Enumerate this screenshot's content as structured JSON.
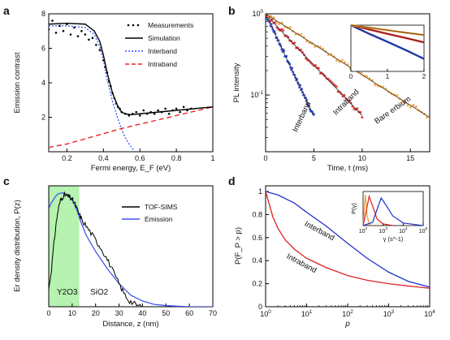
{
  "chart_data": [
    {
      "panel": "a",
      "type": "line",
      "xlabel": "Fermi energy, E_F (eV)",
      "ylabel": "Emission contrast",
      "xlim": [
        0.1,
        1.0
      ],
      "ylim": [
        0,
        8
      ],
      "xticks": [
        0.2,
        0.4,
        0.6,
        0.8,
        1
      ],
      "xtick_labels": [
        "0.2",
        "0.4",
        "0.6",
        "0.8",
        "1"
      ],
      "yticks": [
        2,
        4,
        6,
        8
      ],
      "ytick_labels": [
        "2",
        "4",
        "6",
        "8"
      ],
      "legend": [
        {
          "label": "Measurements",
          "style": "points",
          "color": "#000000"
        },
        {
          "label": "Simulation",
          "style": "solid",
          "color": "#000000"
        },
        {
          "label": "Interband",
          "style": "dotted",
          "color": "#3355ff"
        },
        {
          "label": "Intraband",
          "style": "dashed",
          "color": "#ee2222"
        }
      ],
      "legend_placement": "top-right",
      "series": [
        {
          "name": "Simulation",
          "x": [
            0.1,
            0.2,
            0.3,
            0.35,
            0.38,
            0.4,
            0.42,
            0.45,
            0.48,
            0.5,
            0.52,
            0.55,
            0.6,
            0.7,
            0.8,
            0.9,
            1.0
          ],
          "y": [
            7.4,
            7.45,
            7.4,
            7.0,
            6.4,
            5.6,
            4.6,
            3.4,
            2.6,
            2.3,
            2.2,
            2.15,
            2.2,
            2.3,
            2.4,
            2.5,
            2.6
          ]
        },
        {
          "name": "Interband",
          "x": [
            0.1,
            0.2,
            0.3,
            0.35,
            0.38,
            0.4,
            0.42,
            0.45,
            0.48,
            0.5,
            0.52,
            0.55,
            0.57
          ],
          "y": [
            7.3,
            7.3,
            7.2,
            6.8,
            6.1,
            5.3,
            4.2,
            2.9,
            1.9,
            1.3,
            0.8,
            0.3,
            0.05
          ]
        },
        {
          "name": "Intraband",
          "x": [
            0.1,
            0.2,
            0.3,
            0.4,
            0.5,
            0.6,
            0.7,
            0.8,
            0.9,
            1.0
          ],
          "y": [
            0.25,
            0.45,
            0.75,
            1.05,
            1.35,
            1.6,
            1.85,
            2.1,
            2.35,
            2.6
          ]
        },
        {
          "name": "Measurements",
          "x": [
            0.1,
            0.12,
            0.14,
            0.16,
            0.18,
            0.2,
            0.22,
            0.24,
            0.26,
            0.28,
            0.3,
            0.32,
            0.34,
            0.36,
            0.38,
            0.4,
            0.41,
            0.42,
            0.43,
            0.44,
            0.45,
            0.46,
            0.47,
            0.48,
            0.49,
            0.5,
            0.52,
            0.54,
            0.56,
            0.58,
            0.6,
            0.62,
            0.64,
            0.66,
            0.68,
            0.7,
            0.72,
            0.74,
            0.76,
            0.78,
            0.8,
            0.82,
            0.84,
            0.86,
            0.88
          ],
          "y": [
            7.1,
            7.6,
            6.9,
            7.3,
            7.0,
            7.4,
            6.8,
            7.2,
            6.7,
            7.0,
            6.8,
            6.5,
            6.6,
            6.2,
            5.9,
            5.3,
            4.9,
            4.6,
            4.1,
            3.8,
            3.4,
            3.1,
            2.8,
            2.6,
            2.5,
            2.3,
            2.2,
            2.1,
            2.2,
            2.3,
            2.1,
            2.4,
            2.2,
            2.3,
            2.2,
            2.4,
            2.3,
            2.5,
            2.2,
            2.4,
            2.5,
            2.3,
            2.6,
            2.4,
            2.5
          ]
        }
      ]
    },
    {
      "panel": "b",
      "type": "line",
      "xlabel": "Time, t (ms)",
      "ylabel": "PL intensity",
      "xlim": [
        0,
        17
      ],
      "ylim": [
        0.02,
        1
      ],
      "yscale": "log",
      "xticks": [
        0,
        5,
        10,
        15
      ],
      "xtick_labels": [
        "0",
        "5",
        "10",
        "15"
      ],
      "yticks": [
        0.1,
        1
      ],
      "ytick_labels": [
        "10^-1",
        "10^0"
      ],
      "annotations": [
        {
          "text": "Interband",
          "color": "#1f3fd6"
        },
        {
          "text": "Intraband",
          "color": "#e02020"
        },
        {
          "text": "Bare erbium",
          "color": "#f29a2e"
        }
      ],
      "series": [
        {
          "name": "Interband",
          "x": [
            0,
            1,
            2,
            3,
            4,
            5
          ],
          "y": [
            1.0,
            0.56,
            0.31,
            0.175,
            0.098,
            0.055
          ]
        },
        {
          "name": "Intraband",
          "x": [
            0,
            2,
            4,
            6,
            8,
            10
          ],
          "y": [
            1.0,
            0.55,
            0.31,
            0.175,
            0.1,
            0.056
          ]
        },
        {
          "name": "Bare erbium",
          "x": [
            0,
            4,
            8,
            12,
            16,
            17
          ],
          "y": [
            1.0,
            0.5,
            0.25,
            0.125,
            0.063,
            0.053
          ]
        }
      ],
      "inset": {
        "xlim": [
          0,
          2
        ],
        "xticks": [
          0,
          1,
          2
        ],
        "xtick_labels": [
          "0",
          "1",
          "2"
        ],
        "yscale": "log",
        "series": [
          {
            "name": "Interband",
            "x": [
              0,
              0.5,
              1,
              1.5,
              2
            ],
            "y": [
              1.0,
              0.74,
              0.56,
              0.42,
              0.31
            ]
          },
          {
            "name": "Intraband",
            "x": [
              0,
              0.5,
              1,
              1.5,
              2
            ],
            "y": [
              1.0,
              0.86,
              0.74,
              0.64,
              0.55
            ]
          },
          {
            "name": "Bare erbium",
            "x": [
              0,
              0.5,
              1,
              1.5,
              2
            ],
            "y": [
              1.0,
              0.92,
              0.84,
              0.77,
              0.71
            ]
          }
        ]
      }
    },
    {
      "panel": "c",
      "type": "line",
      "xlabel": "Distance, z (nm)",
      "ylabel": "Er density distribution, P(z)",
      "xlim": [
        0,
        70
      ],
      "ylim": [
        0,
        1
      ],
      "xticks": [
        0,
        10,
        20,
        30,
        40,
        50,
        60,
        70
      ],
      "xtick_labels": [
        "0",
        "10",
        "20",
        "30",
        "40",
        "50",
        "60",
        "70"
      ],
      "shaded_region": {
        "x": [
          0,
          13
        ],
        "color": "#b6f2b0",
        "label": "Y2O3"
      },
      "region_labels": [
        "Y2O3",
        "SiO2"
      ],
      "legend": [
        {
          "label": "TOF-SIMS",
          "color": "#000000"
        },
        {
          "label": "Emission",
          "color": "#4455ee"
        }
      ],
      "legend_placement": "top-right",
      "series": [
        {
          "name": "TOF-SIMS",
          "x": [
            0,
            1,
            2,
            3,
            4,
            5,
            6,
            7,
            8,
            9,
            10,
            11,
            12,
            13,
            14,
            16,
            18,
            20,
            22,
            24,
            26,
            28,
            30,
            32,
            34,
            36,
            38,
            40
          ],
          "y": [
            0.15,
            0.3,
            0.5,
            0.7,
            0.84,
            0.92,
            0.96,
            0.97,
            0.96,
            0.95,
            0.93,
            0.9,
            0.85,
            0.8,
            0.76,
            0.7,
            0.64,
            0.58,
            0.52,
            0.45,
            0.37,
            0.28,
            0.2,
            0.12,
            0.06,
            0.03,
            0.01,
            0.0
          ]
        },
        {
          "name": "Emission",
          "x": [
            0,
            1,
            2,
            3,
            4,
            6,
            8,
            10,
            12,
            14,
            16,
            18,
            20,
            22,
            25,
            30,
            35,
            40,
            45,
            50,
            55,
            60,
            65,
            70
          ],
          "y": [
            0.85,
            0.9,
            0.93,
            0.96,
            0.98,
            0.99,
            0.97,
            0.93,
            0.84,
            0.72,
            0.62,
            0.55,
            0.48,
            0.42,
            0.33,
            0.2,
            0.1,
            0.05,
            0.02,
            0.01,
            0.005,
            0.0,
            0.0,
            0.0
          ]
        }
      ]
    },
    {
      "panel": "d",
      "type": "line",
      "xlabel": "p",
      "ylabel": "P(F_P > p)",
      "xscale": "log",
      "xlim": [
        1,
        10000
      ],
      "ylim": [
        0,
        1
      ],
      "xticks": [
        1,
        10,
        100,
        1000,
        10000
      ],
      "xtick_labels": [
        "10^0",
        "10^1",
        "10^2",
        "10^3",
        "10^4"
      ],
      "yticks": [
        0,
        0.2,
        0.4,
        0.6,
        0.8,
        1
      ],
      "ytick_labels": [
        "0",
        "0.2",
        "0.4",
        "0.6",
        "0.8",
        "1"
      ],
      "annotations": [
        {
          "text": "Interband",
          "color": "#2233cc"
        },
        {
          "text": "Intraband",
          "color": "#dd2222"
        }
      ],
      "series": [
        {
          "name": "Interband",
          "x": [
            1,
            2,
            5,
            10,
            30,
            100,
            300,
            1000,
            3000,
            10000
          ],
          "y": [
            1.0,
            0.97,
            0.9,
            0.82,
            0.7,
            0.55,
            0.42,
            0.3,
            0.22,
            0.17
          ]
        },
        {
          "name": "Intraband",
          "x": [
            1,
            1.5,
            2,
            3,
            5,
            10,
            30,
            100,
            300,
            1000,
            3000,
            10000
          ],
          "y": [
            1.0,
            0.78,
            0.68,
            0.58,
            0.5,
            0.42,
            0.34,
            0.27,
            0.23,
            0.2,
            0.18,
            0.16
          ]
        }
      ],
      "inset": {
        "xlabel": "γ (s^-1)",
        "ylabel": "P(γ)",
        "xscale": "log",
        "xticks": [
          100,
          1000,
          10000,
          100000
        ],
        "xtick_labels": [
          "10^2",
          "10^3",
          "10^4",
          "10^5"
        ],
        "series": [
          {
            "name": "Bare erbium",
            "color": "#f29a2e",
            "x": [
              100,
              130,
              160,
              200,
              250
            ],
            "y": [
              0.0,
              0.95,
              0.3,
              0.05,
              0.0
            ]
          },
          {
            "name": "Intraband",
            "color": "#dd2222",
            "x": [
              100,
              150,
              200,
              300,
              500,
              1000,
              3000
            ],
            "y": [
              0.0,
              0.5,
              0.9,
              0.6,
              0.2,
              0.05,
              0.0
            ]
          },
          {
            "name": "Interband",
            "color": "#2233cc",
            "x": [
              100,
              300,
              500,
              800,
              1500,
              3000,
              10000,
              100000
            ],
            "y": [
              0.0,
              0.1,
              0.5,
              0.85,
              0.6,
              0.3,
              0.08,
              0.0
            ]
          }
        ]
      }
    }
  ]
}
